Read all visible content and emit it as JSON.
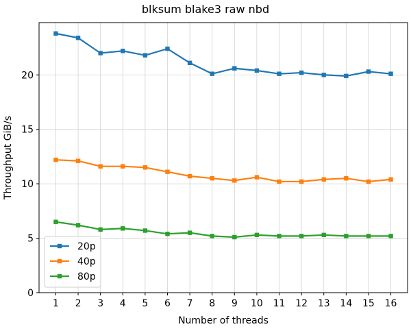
{
  "chart_data": {
    "type": "line",
    "title": "blksum blake3 raw nbd",
    "xlabel": "Number of threads",
    "ylabel": "Throughput GiB/s",
    "x": [
      1,
      2,
      3,
      4,
      5,
      6,
      7,
      8,
      9,
      10,
      11,
      12,
      13,
      14,
      15,
      16
    ],
    "xlim": [
      0.25,
      16.75
    ],
    "ylim": [
      0,
      24.8
    ],
    "yticks": [
      0,
      5,
      10,
      15,
      20
    ],
    "grid": true,
    "legend_position": "lower-left",
    "series": [
      {
        "name": "20p",
        "color": "#1f77b4",
        "marker": "square",
        "values": [
          23.8,
          23.4,
          22.0,
          22.2,
          21.8,
          22.4,
          21.1,
          20.1,
          20.6,
          20.4,
          20.1,
          20.2,
          20.0,
          19.9,
          20.3,
          20.1
        ]
      },
      {
        "name": "40p",
        "color": "#ff7f0e",
        "marker": "square",
        "values": [
          12.2,
          12.1,
          11.6,
          11.6,
          11.5,
          11.1,
          10.7,
          10.5,
          10.3,
          10.6,
          10.2,
          10.2,
          10.4,
          10.5,
          10.2,
          10.4
        ]
      },
      {
        "name": "80p",
        "color": "#2ca02c",
        "marker": "square",
        "values": [
          6.5,
          6.2,
          5.8,
          5.9,
          5.7,
          5.4,
          5.5,
          5.2,
          5.1,
          5.3,
          5.2,
          5.2,
          5.3,
          5.2,
          5.2,
          5.2
        ]
      }
    ]
  }
}
